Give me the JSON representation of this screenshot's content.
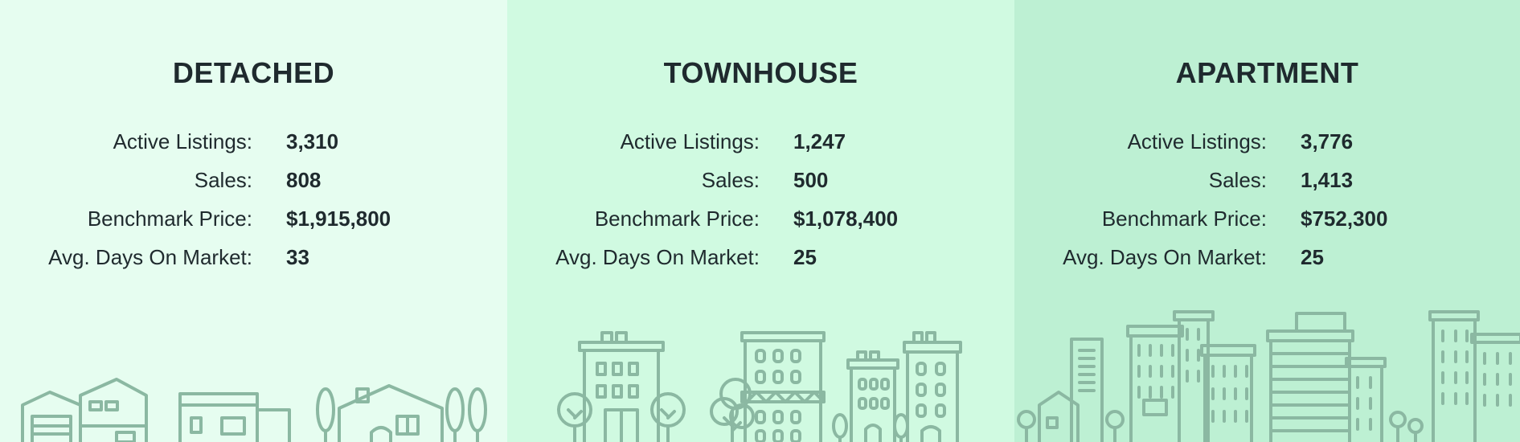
{
  "panels": [
    {
      "title": "DETACHED",
      "stats": [
        {
          "label": "Active Listings:",
          "value": "3,310"
        },
        {
          "label": "Sales:",
          "value": "808"
        },
        {
          "label": "Benchmark Price:",
          "value": "$1,915,800"
        },
        {
          "label": "Avg. Days On Market:",
          "value": "33"
        }
      ],
      "illustration": "houses-illustration",
      "background": "#e6fdf0"
    },
    {
      "title": "TOWNHOUSE",
      "stats": [
        {
          "label": "Active Listings:",
          "value": "1,247"
        },
        {
          "label": "Sales:",
          "value": "500"
        },
        {
          "label": "Benchmark Price:",
          "value": "$1,078,400"
        },
        {
          "label": "Avg. Days On Market:",
          "value": "25"
        }
      ],
      "illustration": "townhouses-illustration",
      "background": "#d0fae1"
    },
    {
      "title": "APARTMENT",
      "stats": [
        {
          "label": "Active Listings:",
          "value": "3,776"
        },
        {
          "label": "Sales:",
          "value": "1,413"
        },
        {
          "label": "Benchmark Price:",
          "value": "$752,300"
        },
        {
          "label": "Avg. Days On Market:",
          "value": "25"
        }
      ],
      "illustration": "apartments-illustration",
      "background": "#bdf0d3"
    }
  ],
  "colors": {
    "text": "#1f2a2e",
    "illustration_stroke": "#8bb8a2"
  }
}
